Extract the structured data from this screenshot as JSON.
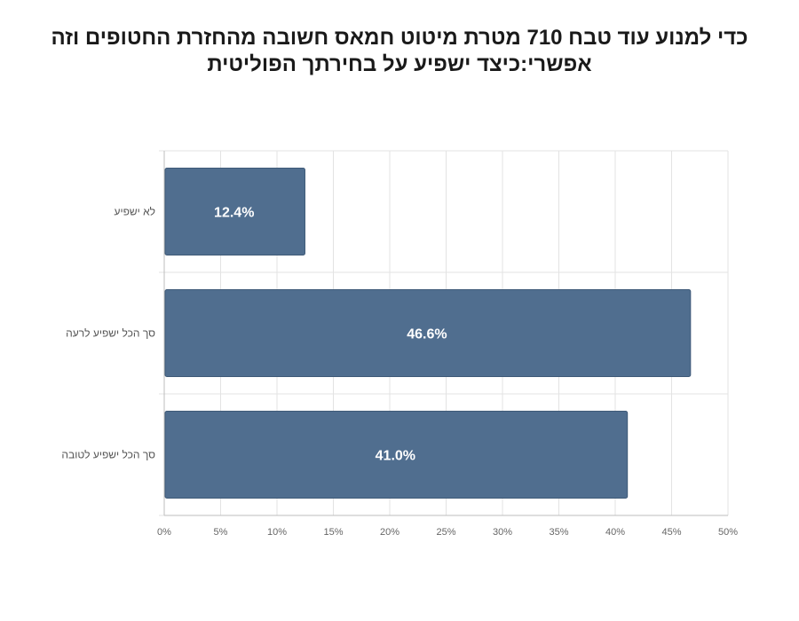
{
  "chart_data": {
    "type": "bar",
    "orientation": "horizontal",
    "title_lines": [
      "כדי למנוע עוד טבח 710 מטרת מיטוט חמאס חשובה מהחזרת החטופים וזה",
      "אפשרי:כיצד ישפיע על בחירתך הפוליטית"
    ],
    "categories": [
      "לא ישפיע",
      "סך הכל ישפיע לרעה",
      "סך הכל ישפיע לטובה"
    ],
    "values": [
      12.4,
      46.6,
      41.0
    ],
    "data_labels": [
      "12.4%",
      "46.6%",
      "41.0%"
    ],
    "xlabel": "",
    "ylabel": "",
    "xlim": [
      0,
      50
    ],
    "x_ticks": [
      0,
      5,
      10,
      15,
      20,
      25,
      30,
      35,
      40,
      45,
      50
    ],
    "x_tick_labels": [
      "0%",
      "5%",
      "10%",
      "15%",
      "20%",
      "25%",
      "30%",
      "35%",
      "40%",
      "45%",
      "50%"
    ],
    "grid": true,
    "legend": "none",
    "bar_color": "#506e8f"
  }
}
